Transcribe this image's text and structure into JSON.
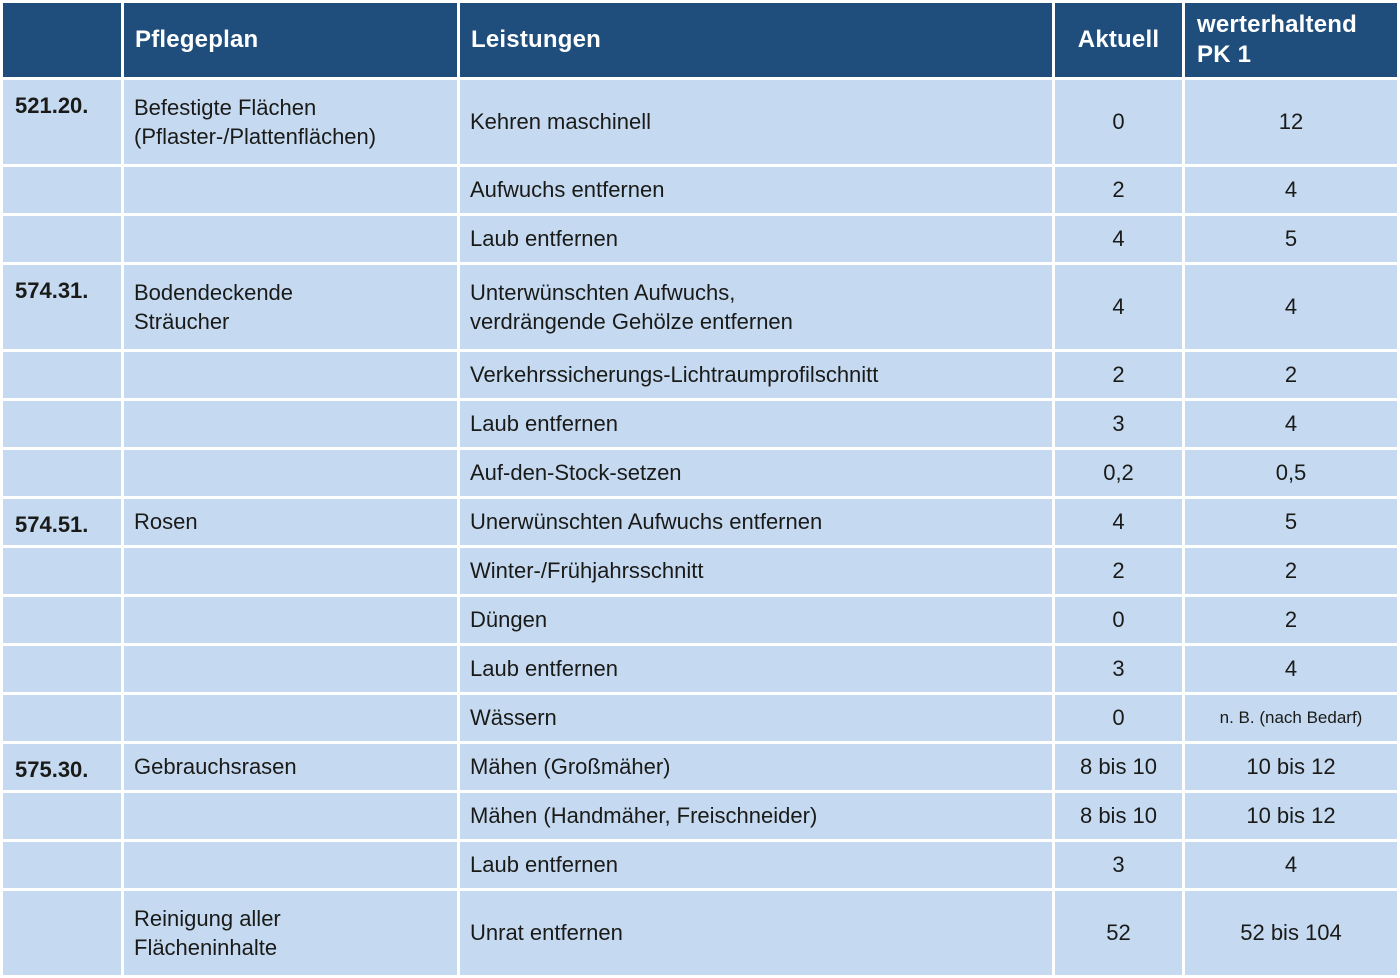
{
  "colors": {
    "header_bg": "#1f4e7c",
    "header_text": "#ffffff",
    "cell_bg": "#c5daf1",
    "body_text": "#1a1a18",
    "grid": "#ffffff"
  },
  "table": {
    "header": {
      "code": "",
      "pflegeplan": "Pflegeplan",
      "leistungen": "Leistungen",
      "aktuell": "Aktuell",
      "pk1": "werterhaltend\nPK 1"
    },
    "rows": [
      {
        "code": "521.20.",
        "pflegeplan": "Befestigte Flächen\n(Pflaster-/Plattenflächen)",
        "leistungen": "Kehren maschinell",
        "aktuell": "0",
        "pk1": "12"
      },
      {
        "code": "",
        "pflegeplan": "",
        "leistungen": "Aufwuchs entfernen",
        "aktuell": "2",
        "pk1": "4"
      },
      {
        "code": "",
        "pflegeplan": "",
        "leistungen": "Laub entfernen",
        "aktuell": "4",
        "pk1": "5"
      },
      {
        "code": "574.31.",
        "pflegeplan": "Bodendeckende\nSträucher",
        "leistungen": "Unterwünschten Aufwuchs,\nverdrängende Gehölze entfernen",
        "aktuell": "4",
        "pk1": "4"
      },
      {
        "code": "",
        "pflegeplan": "",
        "leistungen": "Verkehrssicherungs-Lichtraumprofilschnitt",
        "aktuell": "2",
        "pk1": "2"
      },
      {
        "code": "",
        "pflegeplan": "",
        "leistungen": "Laub entfernen",
        "aktuell": "3",
        "pk1": "4"
      },
      {
        "code": "",
        "pflegeplan": "",
        "leistungen": "Auf-den-Stock-setzen",
        "aktuell": "0,2",
        "pk1": "0,5"
      },
      {
        "code": "574.51.",
        "pflegeplan": "Rosen",
        "leistungen": "Unerwünschten Aufwuchs entfernen",
        "aktuell": "4",
        "pk1": "5"
      },
      {
        "code": "",
        "pflegeplan": "",
        "leistungen": "Winter-/Frühjahrsschnitt",
        "aktuell": "2",
        "pk1": "2"
      },
      {
        "code": "",
        "pflegeplan": "",
        "leistungen": "Düngen",
        "aktuell": "0",
        "pk1": "2"
      },
      {
        "code": "",
        "pflegeplan": "",
        "leistungen": "Laub entfernen",
        "aktuell": "3",
        "pk1": "4"
      },
      {
        "code": "",
        "pflegeplan": "",
        "leistungen": "Wässern",
        "aktuell": "0",
        "pk1": "n. B. (nach Bedarf)",
        "pk1_is_note": true
      },
      {
        "code": "575.30.",
        "pflegeplan": "Gebrauchsrasen",
        "leistungen": "Mähen (Großmäher)",
        "aktuell": "8 bis 10",
        "pk1": "10 bis 12"
      },
      {
        "code": "",
        "pflegeplan": "",
        "leistungen": "Mähen (Handmäher, Freischneider)",
        "aktuell": "8 bis 10",
        "pk1": "10 bis 12"
      },
      {
        "code": "",
        "pflegeplan": "",
        "leistungen": "Laub entfernen",
        "aktuell": "3",
        "pk1": "4"
      },
      {
        "code": "",
        "pflegeplan": "Reinigung aller\nFlächeninhalte",
        "leistungen": "Unrat entfernen",
        "aktuell": "52",
        "pk1": "52 bis 104"
      }
    ]
  }
}
